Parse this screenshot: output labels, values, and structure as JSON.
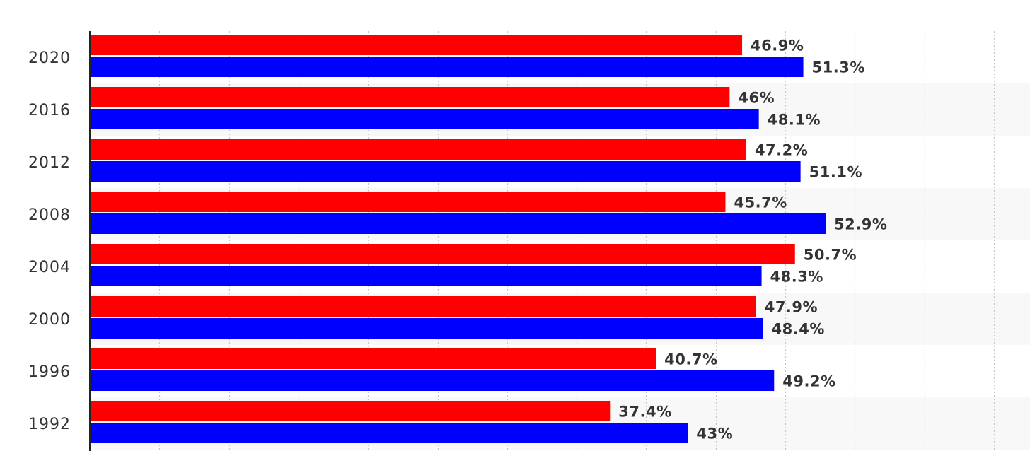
{
  "chart_data": {
    "type": "bar",
    "orientation": "horizontal",
    "title": "",
    "xlabel": "",
    "ylabel": "",
    "categories": [
      "2020",
      "2016",
      "2012",
      "2008",
      "2004",
      "2000",
      "1996",
      "1992"
    ],
    "series": [
      {
        "color": "#ff0000",
        "values": [
          46.9,
          46,
          47.2,
          45.7,
          50.7,
          47.9,
          40.7,
          37.4
        ],
        "labels": [
          "46.9%",
          "46%",
          "47.2%",
          "45.7%",
          "50.7%",
          "47.9%",
          "40.7%",
          "37.4%"
        ]
      },
      {
        "color": "#0000ff",
        "values": [
          51.3,
          48.1,
          51.1,
          52.9,
          48.3,
          48.4,
          49.2,
          43
        ],
        "labels": [
          "51.3%",
          "48.1%",
          "51.1%",
          "52.9%",
          "48.3%",
          "48.4%",
          "49.2%",
          "43%"
        ]
      }
    ],
    "xlim": [
      0,
      65
    ],
    "grid": true,
    "legend": "none"
  }
}
